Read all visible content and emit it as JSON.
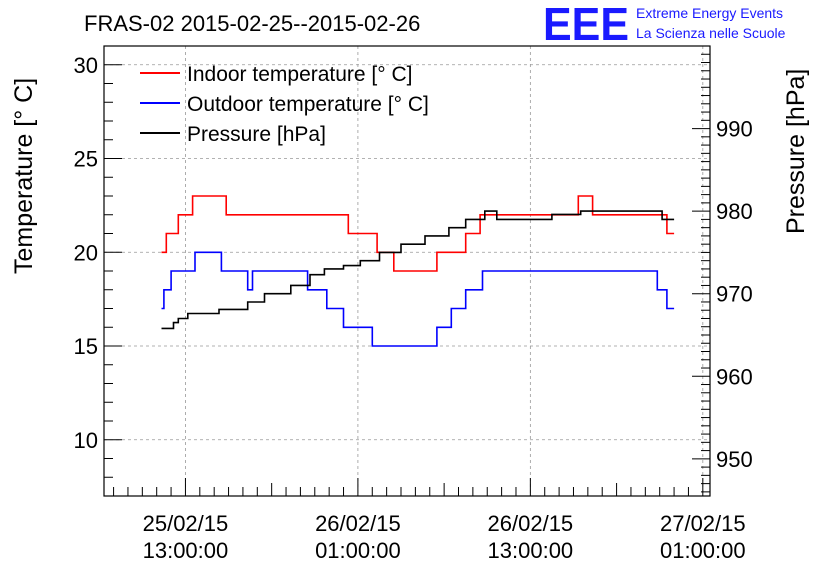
{
  "chart_data": {
    "type": "line",
    "title": "FRAS-02 2015-02-25--2015-02-26",
    "ylabel": "Temperature [° C]",
    "y2label": "Pressure [hPa]",
    "xlabel": "",
    "ylim": [
      7,
      31
    ],
    "y2lim": [
      945.5,
      1000
    ],
    "xlim": [
      "2015-02-25 07:20:00",
      "2015-02-27 01:30:00"
    ],
    "grid": true,
    "legend_position": "top-left",
    "yticks": [
      10,
      15,
      20,
      25,
      30
    ],
    "y2ticks": [
      950,
      960,
      970,
      980,
      990
    ],
    "xticks": [
      {
        "x": "2015-02-25 13:00:00",
        "line1": "25/02/15",
        "line2": "13:00:00"
      },
      {
        "x": "2015-02-26 01:00:00",
        "line1": "26/02/15",
        "line2": "01:00:00"
      },
      {
        "x": "2015-02-26 13:00:00",
        "line1": "26/02/15",
        "line2": "13:00:00"
      },
      {
        "x": "2015-02-27 01:00:00",
        "line1": "27/02/15",
        "line2": "01:00:00"
      }
    ],
    "series": [
      {
        "name": "Indoor temperature [° C]",
        "axis": "left",
        "color": "#ff0000",
        "step": true,
        "points": [
          [
            "2015-02-25 11:20",
            20
          ],
          [
            "2015-02-25 11:40",
            21
          ],
          [
            "2015-02-25 12:30",
            22
          ],
          [
            "2015-02-25 13:30",
            23
          ],
          [
            "2015-02-25 15:50",
            22
          ],
          [
            "2015-02-25 21:20",
            22
          ],
          [
            "2015-02-26 00:20",
            21
          ],
          [
            "2015-02-26 02:20",
            20
          ],
          [
            "2015-02-26 03:30",
            19
          ],
          [
            "2015-02-26 06:30",
            20
          ],
          [
            "2015-02-26 08:30",
            21
          ],
          [
            "2015-02-26 09:30",
            22
          ],
          [
            "2015-02-26 13:20",
            22
          ],
          [
            "2015-02-26 16:20",
            23
          ],
          [
            "2015-02-26 17:20",
            22
          ],
          [
            "2015-02-26 22:30",
            21
          ],
          [
            "2015-02-26 23:00",
            21
          ]
        ]
      },
      {
        "name": "Outdoor temperature [° C]",
        "axis": "left",
        "color": "#0000ff",
        "step": true,
        "points": [
          [
            "2015-02-25 11:20",
            17
          ],
          [
            "2015-02-25 11:30",
            18
          ],
          [
            "2015-02-25 12:00",
            19
          ],
          [
            "2015-02-25 13:40",
            20
          ],
          [
            "2015-02-25 15:30",
            19
          ],
          [
            "2015-02-25 17:20",
            18
          ],
          [
            "2015-02-25 17:40",
            19
          ],
          [
            "2015-02-25 21:30",
            18
          ],
          [
            "2015-02-25 22:50",
            17
          ],
          [
            "2015-02-26 00:00",
            16
          ],
          [
            "2015-02-26 02:00",
            15
          ],
          [
            "2015-02-26 06:30",
            16
          ],
          [
            "2015-02-26 07:30",
            17
          ],
          [
            "2015-02-26 08:30",
            18
          ],
          [
            "2015-02-26 09:40",
            19
          ],
          [
            "2015-02-26 21:50",
            18
          ],
          [
            "2015-02-26 22:30",
            17
          ],
          [
            "2015-02-26 23:00",
            17
          ]
        ]
      },
      {
        "name": "Pressure [hPa]",
        "axis": "right",
        "color": "#000000",
        "step": true,
        "points": [
          [
            "2015-02-25 11:20",
            965.8
          ],
          [
            "2015-02-25 12:10",
            966.5
          ],
          [
            "2015-02-25 12:30",
            967.0
          ],
          [
            "2015-02-25 13:10",
            967.6
          ],
          [
            "2015-02-25 15:20",
            968.1
          ],
          [
            "2015-02-25 17:20",
            969.0
          ],
          [
            "2015-02-25 18:30",
            970.0
          ],
          [
            "2015-02-25 20:20",
            971.0
          ],
          [
            "2015-02-25 21:40",
            972.3
          ],
          [
            "2015-02-25 22:40",
            973.0
          ],
          [
            "2015-02-26 00:00",
            973.4
          ],
          [
            "2015-02-26 01:10",
            974.0
          ],
          [
            "2015-02-26 02:30",
            975.0
          ],
          [
            "2015-02-26 04:00",
            976.0
          ],
          [
            "2015-02-26 05:40",
            977.0
          ],
          [
            "2015-02-26 07:20",
            978.0
          ],
          [
            "2015-02-26 08:30",
            979.0
          ],
          [
            "2015-02-26 09:50",
            980.0
          ],
          [
            "2015-02-26 10:40",
            979.0
          ],
          [
            "2015-02-26 14:30",
            979.6
          ],
          [
            "2015-02-26 16:30",
            980.0
          ],
          [
            "2015-02-26 22:10",
            979.0
          ],
          [
            "2015-02-26 23:00",
            979.0
          ]
        ]
      }
    ]
  },
  "logo": {
    "mark": "EEE",
    "line1": "Extreme Energy Events",
    "line2": "La Scienza nelle Scuole"
  }
}
